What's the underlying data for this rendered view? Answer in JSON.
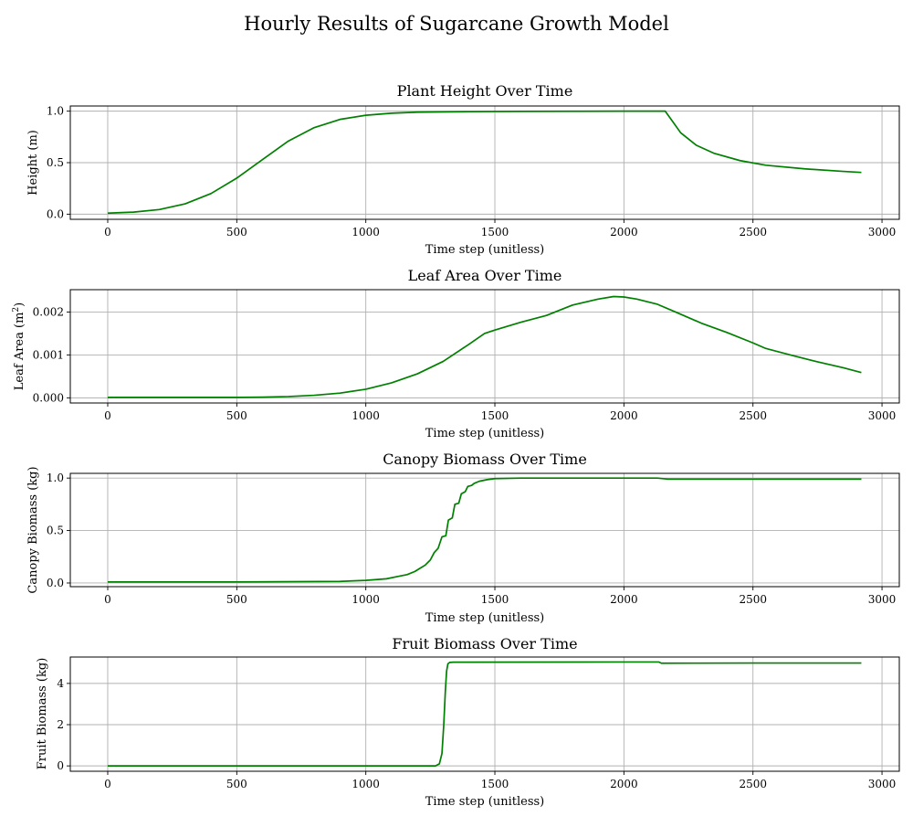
{
  "figure": {
    "title": "Hourly Results of Sugarcane Growth Model",
    "line_color": "#008000",
    "grid_color": "#b0b0b0"
  },
  "chart_data": [
    {
      "type": "line",
      "title": "Plant Height Over Time",
      "xlabel": "Time step (unitless)",
      "ylabel": "Height (m)",
      "ylabel_superscript": "",
      "ylabel_suffix": "",
      "xlim": [
        -145,
        3067
      ],
      "ylim": [
        -0.05,
        1.05
      ],
      "xticks": [
        0,
        500,
        1000,
        1500,
        2000,
        2500,
        3000
      ],
      "xtick_labels": [
        "0",
        "500",
        "1000",
        "1500",
        "2000",
        "2500",
        "3000"
      ],
      "yticks": [
        0.0,
        0.5,
        1.0
      ],
      "ytick_labels": [
        "0.0",
        "0.5",
        "1.0"
      ],
      "grid": true,
      "series": [
        {
          "x": [
            0,
            100,
            200,
            300,
            400,
            500,
            600,
            700,
            800,
            900,
            1000,
            1100,
            1200,
            1400,
            1600,
            1800,
            2000,
            2160,
            2180,
            2220,
            2280,
            2350,
            2450,
            2550,
            2700,
            2850,
            2920
          ],
          "y": [
            0.01,
            0.02,
            0.045,
            0.1,
            0.2,
            0.35,
            0.53,
            0.71,
            0.84,
            0.92,
            0.96,
            0.98,
            0.99,
            0.995,
            0.998,
            0.999,
            1.0,
            1.0,
            0.93,
            0.79,
            0.67,
            0.59,
            0.52,
            0.475,
            0.44,
            0.415,
            0.405
          ]
        }
      ]
    },
    {
      "type": "line",
      "title": "Leaf Area Over Time",
      "xlabel": "Time step (unitless)",
      "ylabel": "Leaf Area (m",
      "ylabel_superscript": "2",
      "ylabel_suffix": ")",
      "xlim": [
        -145,
        3067
      ],
      "ylim": [
        -0.00012,
        0.00252
      ],
      "xticks": [
        0,
        500,
        1000,
        1500,
        2000,
        2500,
        3000
      ],
      "xtick_labels": [
        "0",
        "500",
        "1000",
        "1500",
        "2000",
        "2500",
        "3000"
      ],
      "yticks": [
        0.0,
        0.001,
        0.002
      ],
      "ytick_labels": [
        "0.000",
        "0.001",
        "0.002"
      ],
      "grid": true,
      "series": [
        {
          "x": [
            0,
            300,
            500,
            600,
            700,
            800,
            900,
            1000,
            1100,
            1200,
            1300,
            1400,
            1460,
            1500,
            1600,
            1700,
            1800,
            1900,
            1960,
            2000,
            2050,
            2130,
            2200,
            2300,
            2400,
            2500,
            2550,
            2650,
            2750,
            2850,
            2920
          ],
          "y": [
            1e-05,
            1e-05,
            1e-05,
            1.5e-05,
            3e-05,
            6e-05,
            0.00011,
            0.0002,
            0.00035,
            0.00056,
            0.00085,
            0.00125,
            0.0015,
            0.00158,
            0.00176,
            0.00192,
            0.00216,
            0.0023,
            0.00236,
            0.00235,
            0.0023,
            0.00218,
            0.002,
            0.00174,
            0.00152,
            0.00128,
            0.00115,
            0.00099,
            0.00084,
            0.0007,
            0.00059
          ]
        }
      ]
    },
    {
      "type": "line",
      "title": "Canopy Biomass Over Time",
      "xlabel": "Time step (unitless)",
      "ylabel": "Canopy Biomass (kg)",
      "ylabel_superscript": "",
      "ylabel_suffix": "",
      "xlim": [
        -145,
        3067
      ],
      "ylim": [
        -0.035,
        1.045
      ],
      "xticks": [
        0,
        500,
        1000,
        1500,
        2000,
        2500,
        3000
      ],
      "xtick_labels": [
        "0",
        "500",
        "1000",
        "1500",
        "2000",
        "2500",
        "3000"
      ],
      "yticks": [
        0.0,
        0.5,
        1.0
      ],
      "ytick_labels": [
        "0.0",
        "0.5",
        "1.0"
      ],
      "grid": true,
      "series": [
        {
          "x": [
            0,
            500,
            900,
            1000,
            1080,
            1120,
            1160,
            1190,
            1210,
            1230,
            1250,
            1265,
            1280,
            1295,
            1310,
            1320,
            1335,
            1345,
            1360,
            1370,
            1385,
            1395,
            1410,
            1420,
            1440,
            1470,
            1500,
            1600,
            2000,
            2130,
            2170,
            2500,
            2920
          ],
          "y": [
            0.01,
            0.01,
            0.015,
            0.025,
            0.04,
            0.06,
            0.08,
            0.11,
            0.14,
            0.17,
            0.22,
            0.29,
            0.33,
            0.44,
            0.45,
            0.6,
            0.62,
            0.75,
            0.76,
            0.85,
            0.87,
            0.92,
            0.93,
            0.95,
            0.97,
            0.985,
            0.995,
            1.0,
            1.0,
            1.0,
            0.99,
            0.99,
            0.99
          ]
        }
      ]
    },
    {
      "type": "line",
      "title": "Fruit Biomass Over Time",
      "xlabel": "Time step (unitless)",
      "ylabel": "Fruit Biomass (kg)",
      "ylabel_superscript": "",
      "ylabel_suffix": "",
      "xlim": [
        -145,
        3067
      ],
      "ylim": [
        -0.26,
        5.28
      ],
      "xticks": [
        0,
        500,
        1000,
        1500,
        2000,
        2500,
        3000
      ],
      "xtick_labels": [
        "0",
        "500",
        "1000",
        "1500",
        "2000",
        "2500",
        "3000"
      ],
      "yticks": [
        0,
        2,
        4
      ],
      "ytick_labels": [
        "0",
        "2",
        "4"
      ],
      "grid": true,
      "series": [
        {
          "x": [
            0,
            1270,
            1285,
            1295,
            1302,
            1308,
            1313,
            1318,
            1325,
            1340,
            2000,
            2135,
            2145,
            2500,
            2920
          ],
          "y": [
            0.0,
            0.0,
            0.1,
            0.6,
            2.0,
            3.6,
            4.6,
            4.95,
            5.02,
            5.03,
            5.04,
            5.04,
            4.98,
            4.99,
            4.99
          ]
        }
      ]
    }
  ]
}
